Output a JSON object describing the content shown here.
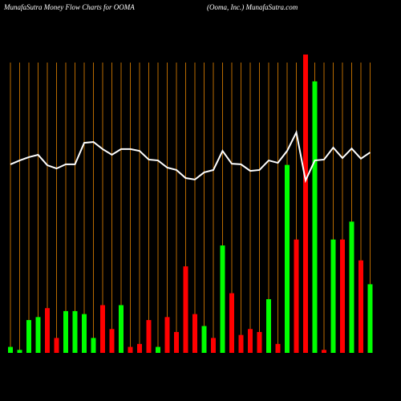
{
  "chart_data": {
    "type": "bar",
    "title": "MunafaSutra  Money Flow  Charts for OOMA",
    "subtitle": "(Ooma, Inc.) MunafaSutra.com",
    "categories": [
      null,
      null,
      null,
      null,
      null,
      null,
      null,
      null,
      null,
      null,
      null,
      null,
      null,
      null,
      null,
      null,
      null,
      null,
      null,
      null,
      null,
      null,
      null,
      null,
      null,
      null,
      null,
      null,
      null,
      null,
      null,
      null,
      null,
      null,
      null,
      null,
      null,
      null,
      null,
      null
    ],
    "values": [
      2,
      1,
      11,
      12,
      15,
      5,
      14,
      14,
      13,
      5,
      16,
      8,
      16,
      2,
      3,
      11,
      2,
      12,
      7,
      29,
      13,
      9,
      5,
      36,
      20,
      6,
      8,
      7,
      18,
      3,
      63,
      38,
      100,
      91,
      1,
      38,
      38,
      44,
      31,
      23
    ],
    "colors": [
      "#00ff00",
      "#00ff00",
      "#00ff00",
      "#00ff00",
      "#ff0000",
      "#ff0000",
      "#00ff00",
      "#00ff00",
      "#00ff00",
      "#00ff00",
      "#ff0000",
      "#ff0000",
      "#00ff00",
      "#ff0000",
      "#ff0000",
      "#ff0000",
      "#00ff00",
      "#ff0000",
      "#ff0000",
      "#ff0000",
      "#ff0000",
      "#00ff00",
      "#ff0000",
      "#00ff00",
      "#ff0000",
      "#ff0000",
      "#ff0000",
      "#ff0000",
      "#00ff00",
      "#ff0000",
      "#00ff00",
      "#ff0000",
      "#ff0000",
      "#00ff00",
      "#ff0000",
      "#00ff00",
      "#ff0000",
      "#00ff00",
      "#ff0000",
      "#00ff00"
    ],
    "line_values": [
      63.2,
      64.5,
      65.6,
      66.4,
      62.9,
      61.8,
      63.2,
      63.2,
      70.4,
      70.7,
      68.3,
      66.4,
      68.3,
      68.3,
      67.7,
      64.8,
      64.5,
      62.1,
      61.3,
      58.6,
      58.1,
      60.5,
      61.3,
      67.7,
      63.4,
      63.2,
      61.0,
      61.3,
      64.5,
      63.7,
      67.7,
      73.9,
      57.8,
      64.5,
      64.8,
      68.8,
      65.3,
      68.5,
      65.1,
      67.2
    ],
    "line_color": "#ffffff",
    "grid_color": "#b86a00",
    "ylim": [
      0,
      100
    ]
  }
}
